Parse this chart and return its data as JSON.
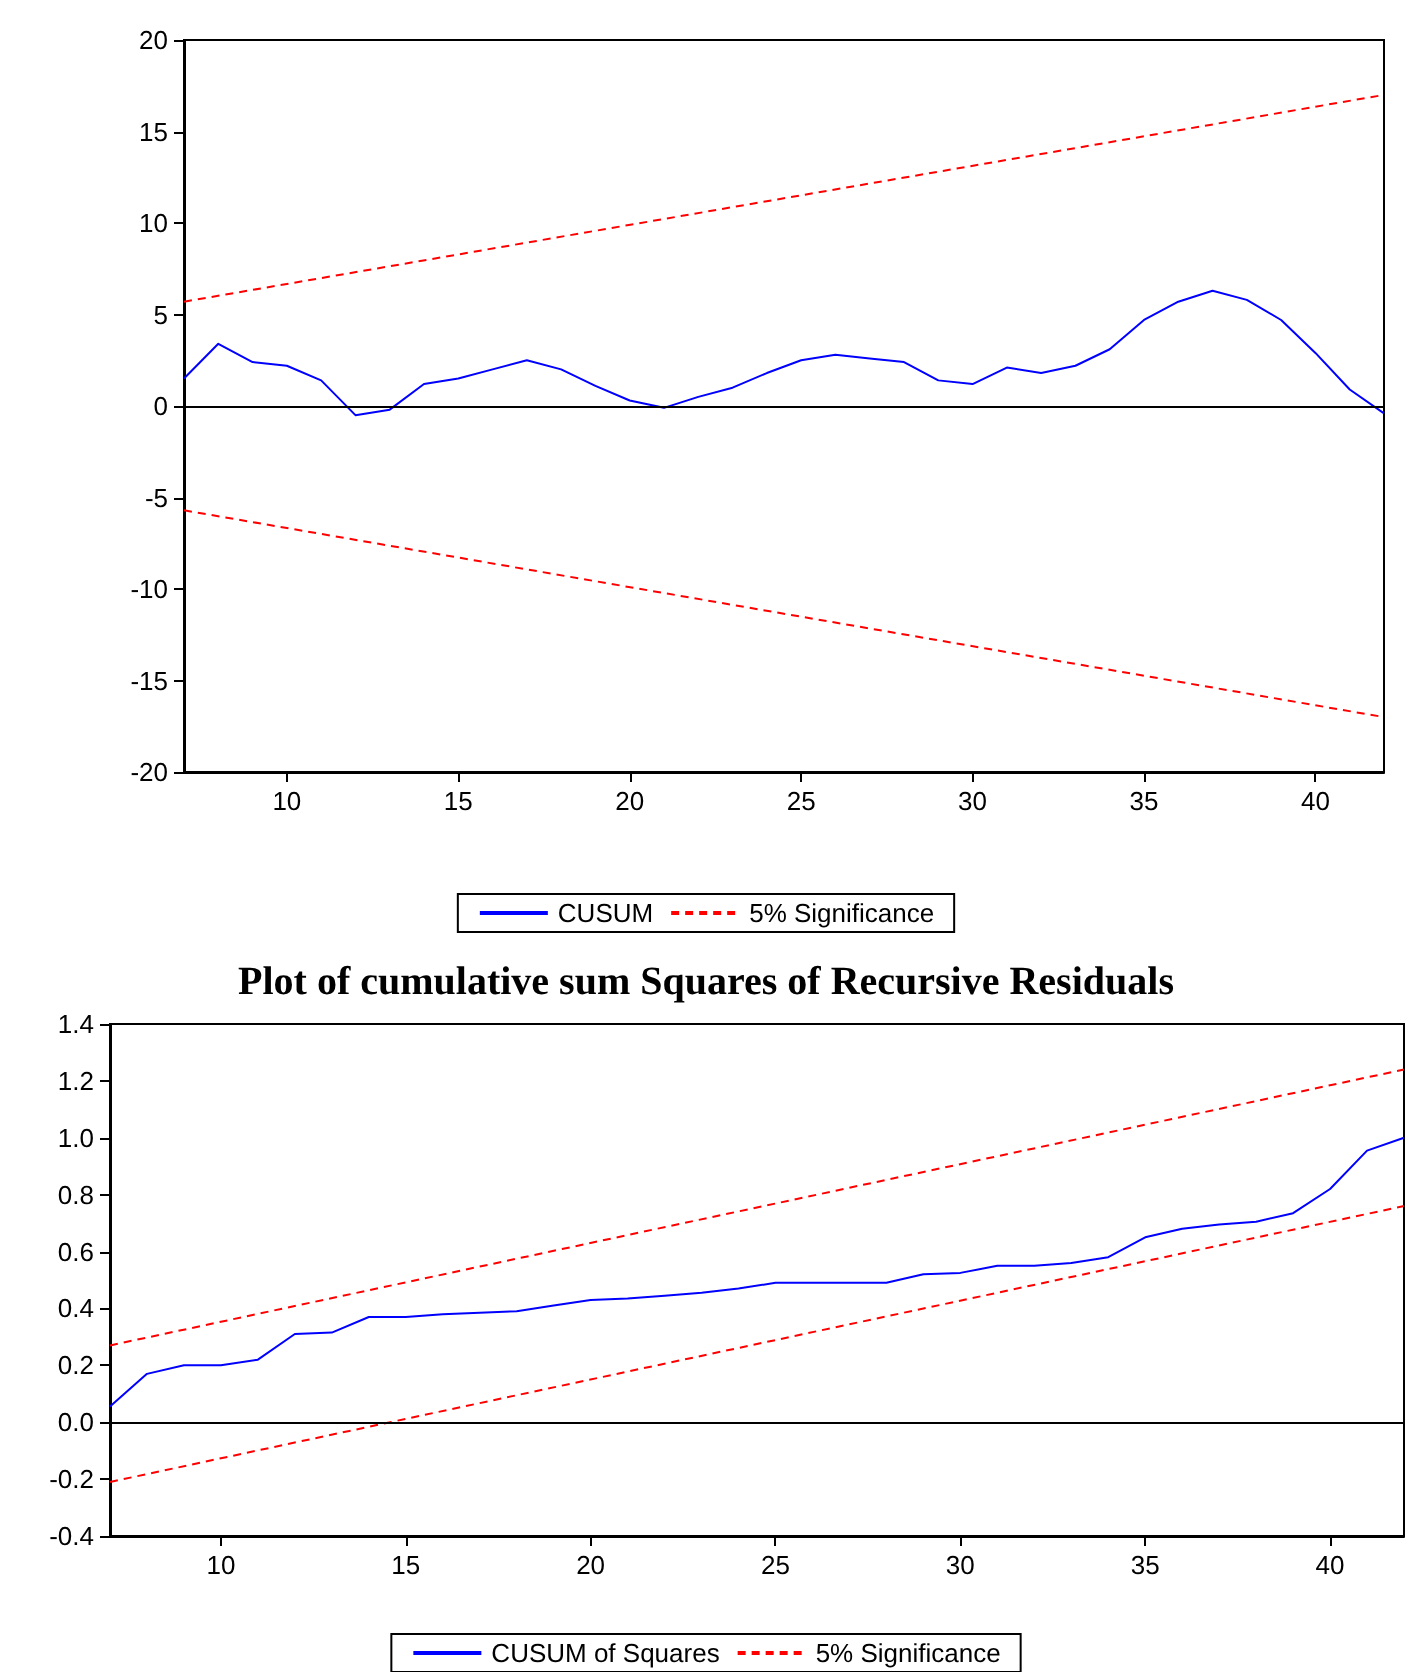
{
  "chart_data": [
    {
      "type": "line",
      "xlim": [
        7,
        42
      ],
      "xticks": [
        10,
        15,
        20,
        25,
        30,
        35,
        40
      ],
      "ylim": [
        -20,
        20
      ],
      "yticks": [
        -20,
        -15,
        -10,
        -5,
        0,
        5,
        10,
        15,
        20
      ],
      "grid": false,
      "legend": "bottom",
      "marker": "none",
      "ref_lines": [
        {
          "axis": "y",
          "value": 0,
          "color": "#000000"
        }
      ],
      "series": [
        {
          "name": "CUSUM",
          "color": "#0000ff",
          "line_style": "solid",
          "x": [
            7,
            8,
            9,
            10,
            11,
            12,
            13,
            14,
            15,
            16,
            17,
            18,
            19,
            20,
            21,
            22,
            23,
            24,
            25,
            26,
            27,
            28,
            29,
            30,
            31,
            32,
            33,
            34,
            35,
            36,
            37,
            38,
            39,
            40,
            41,
            42
          ],
          "values": [
            1.5,
            3.4,
            2.4,
            2.2,
            1.4,
            -0.5,
            -0.2,
            1.2,
            1.5,
            2.0,
            2.5,
            2.0,
            1.1,
            0.3,
            -0.1,
            0.5,
            1.0,
            1.8,
            2.5,
            2.8,
            2.6,
            2.4,
            1.4,
            1.2,
            2.1,
            1.8,
            2.2,
            3.1,
            4.7,
            5.7,
            6.3,
            5.8,
            4.7,
            2.9,
            0.9,
            -0.4
          ]
        },
        {
          "name": "5% Significance",
          "color": "#ff0000",
          "line_style": "dashed",
          "x": [
            7,
            42
          ],
          "values": [
            5.7,
            17.0
          ]
        },
        {
          "color": "#ff0000",
          "line_style": "dashed",
          "x": [
            7,
            42
          ],
          "values": [
            -5.7,
            -17.0
          ]
        }
      ]
    },
    {
      "type": "line",
      "title": "Plot of cumulative sum Squares of Recursive Residuals",
      "xlim": [
        7,
        42
      ],
      "xticks": [
        10,
        15,
        20,
        25,
        30,
        35,
        40
      ],
      "ylim": [
        -0.4,
        1.4
      ],
      "yticks": [
        -0.4,
        -0.2,
        {
          "value": 0,
          "label": "0.0"
        },
        0.2,
        0.4,
        0.6,
        0.8,
        {
          "value": 1,
          "label": "1.0"
        },
        1.2,
        1.4
      ],
      "grid": false,
      "legend": "bottom",
      "marker": "none",
      "ref_lines": [
        {
          "axis": "y",
          "value": 0,
          "color": "#000000"
        }
      ],
      "series": [
        {
          "name": "CUSUM of Squares",
          "color": "#0000ff",
          "line_style": "solid",
          "x": [
            7,
            8,
            9,
            10,
            11,
            12,
            13,
            14,
            15,
            16,
            17,
            18,
            19,
            20,
            21,
            22,
            23,
            24,
            25,
            26,
            27,
            28,
            29,
            30,
            31,
            32,
            33,
            34,
            35,
            36,
            37,
            38,
            39,
            40,
            41,
            42
          ],
          "values": [
            0.055,
            0.17,
            0.2,
            0.2,
            0.22,
            0.31,
            0.315,
            0.37,
            0.37,
            0.38,
            0.385,
            0.39,
            0.41,
            0.43,
            0.435,
            0.445,
            0.455,
            0.47,
            0.49,
            0.49,
            0.49,
            0.49,
            0.52,
            0.525,
            0.55,
            0.55,
            0.56,
            0.58,
            0.65,
            0.68,
            0.695,
            0.705,
            0.735,
            0.82,
            0.955,
            1.0
          ]
        },
        {
          "name": "5% Significance",
          "color": "#ff0000",
          "line_style": "dashed",
          "x": [
            7,
            42
          ],
          "values": [
            0.27,
            1.24
          ]
        },
        {
          "color": "#ff0000",
          "line_style": "dashed",
          "x": [
            7,
            42
          ],
          "values": [
            -0.21,
            0.76
          ]
        }
      ]
    }
  ]
}
